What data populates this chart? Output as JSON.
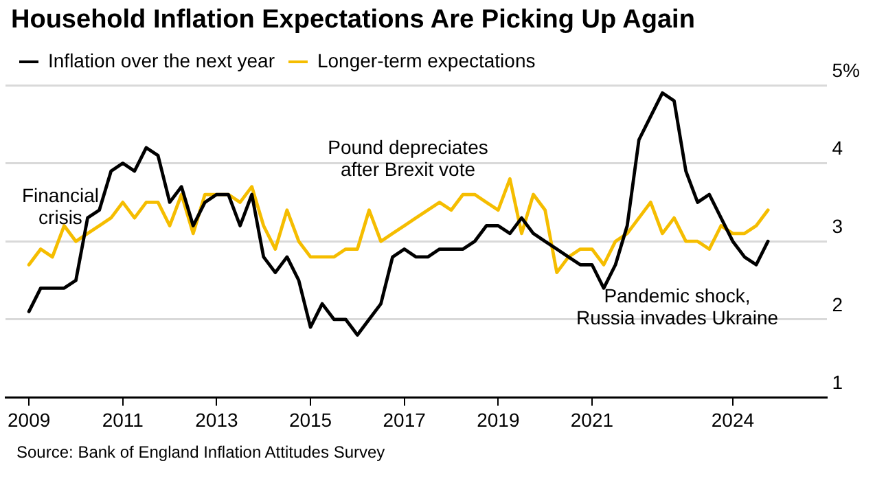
{
  "chart_data": {
    "type": "line",
    "title": "Household Inflation Expectations Are Picking Up Again",
    "x": [
      2009,
      2009.25,
      2009.5,
      2009.75,
      2010,
      2010.25,
      2010.5,
      2010.75,
      2011,
      2011.25,
      2011.5,
      2011.75,
      2012,
      2012.25,
      2012.5,
      2012.75,
      2013,
      2013.25,
      2013.5,
      2013.75,
      2014,
      2014.25,
      2014.5,
      2014.75,
      2015,
      2015.25,
      2015.5,
      2015.75,
      2016,
      2016.25,
      2016.5,
      2016.75,
      2017,
      2017.25,
      2017.5,
      2017.75,
      2018,
      2018.25,
      2018.5,
      2018.75,
      2019,
      2019.25,
      2019.5,
      2019.75,
      2020,
      2020.25,
      2020.5,
      2020.75,
      2021,
      2021.25,
      2021.5,
      2021.75,
      2022,
      2022.25,
      2022.5,
      2022.75,
      2023,
      2023.25,
      2023.5,
      2023.75,
      2024,
      2024.25,
      2024.5,
      2024.75
    ],
    "series": [
      {
        "name": "Inflation over the next year",
        "color": "#000000",
        "values": [
          2.1,
          2.4,
          2.4,
          2.4,
          2.5,
          3.3,
          3.4,
          3.9,
          4.0,
          3.9,
          4.2,
          4.1,
          3.5,
          3.7,
          3.2,
          3.5,
          3.6,
          3.6,
          3.2,
          3.6,
          2.8,
          2.6,
          2.8,
          2.5,
          1.9,
          2.2,
          2.0,
          2.0,
          1.8,
          2.0,
          2.2,
          2.8,
          2.9,
          2.8,
          2.8,
          2.9,
          2.9,
          2.9,
          3.0,
          3.2,
          3.2,
          3.1,
          3.3,
          3.1,
          3.0,
          2.9,
          2.8,
          2.7,
          2.7,
          2.4,
          2.7,
          3.2,
          4.3,
          4.6,
          4.9,
          4.8,
          3.9,
          3.5,
          3.6,
          3.3,
          3.0,
          2.8,
          2.7,
          3.0
        ]
      },
      {
        "name": "Longer-term expectations",
        "color": "#f5bd00",
        "values": [
          2.7,
          2.9,
          2.8,
          3.2,
          3.0,
          3.1,
          3.2,
          3.3,
          3.5,
          3.3,
          3.5,
          3.5,
          3.2,
          3.6,
          3.1,
          3.6,
          3.6,
          3.6,
          3.5,
          3.7,
          3.2,
          2.9,
          3.4,
          3.0,
          2.8,
          2.8,
          2.8,
          2.9,
          2.9,
          3.4,
          3.0,
          3.1,
          3.2,
          3.3,
          3.4,
          3.5,
          3.4,
          3.6,
          3.6,
          3.5,
          3.4,
          3.8,
          3.1,
          3.6,
          3.4,
          2.6,
          2.8,
          2.9,
          2.9,
          2.7,
          3.0,
          3.1,
          3.3,
          3.5,
          3.1,
          3.3,
          3.0,
          3.0,
          2.9,
          3.2,
          3.1,
          3.1,
          3.2,
          3.4
        ]
      }
    ],
    "xlim": [
      2008.5,
      2026
    ],
    "xticks": [
      2009,
      2011,
      2013,
      2015,
      2017,
      2019,
      2021,
      2024
    ],
    "ylim": [
      1,
      5
    ],
    "yticks": [
      1,
      2,
      3,
      4,
      {
        "value": 5,
        "label": "5%"
      }
    ],
    "grid": "y",
    "legend": "top left",
    "marker": "none",
    "line_style": "solid",
    "annotations": [
      "Financial crisis",
      "Pound depreciates after Brexit vote",
      "Pandemic shock, Russia invades Ukraine",
      "Source: Bank of England Inflation Attitudes Survey"
    ]
  }
}
